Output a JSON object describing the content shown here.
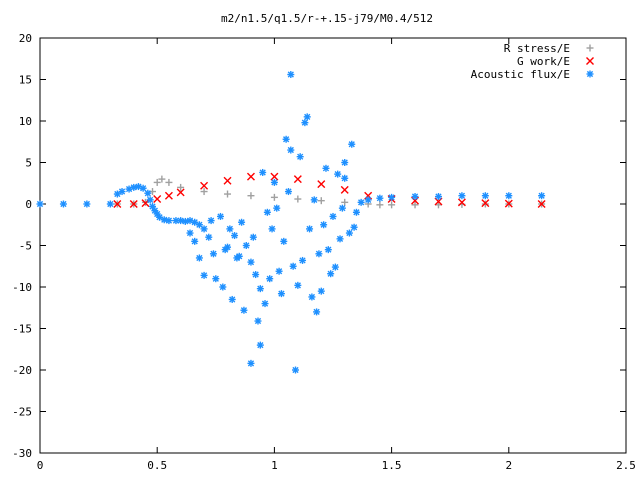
{
  "chart_data": {
    "type": "scatter",
    "title": "m2/n1.5/q1.5/r-+.15-j79/M0.4/512",
    "xlabel": "",
    "ylabel": "",
    "xlim": [
      0,
      2.5
    ],
    "ylim": [
      -30,
      20
    ],
    "x_ticks": [
      "0",
      "0.5",
      "1",
      "1.5",
      "2",
      "2.5"
    ],
    "y_ticks": [
      "20",
      "15",
      "10",
      "5",
      "0",
      "-5",
      "-10",
      "-15",
      "-20",
      "-25",
      "-30"
    ],
    "grid": false,
    "legend_position": "top-right",
    "series": [
      {
        "name": "R stress/E",
        "marker": "plus",
        "color": "#a0a0a0",
        "x": [
          0.33,
          0.4,
          0.45,
          0.48,
          0.5,
          0.52,
          0.55,
          0.6,
          0.7,
          0.8,
          0.9,
          1.0,
          1.1,
          1.2,
          1.3,
          1.4,
          1.45,
          1.5,
          1.6,
          1.7,
          1.8,
          1.9,
          2.0,
          2.14
        ],
        "y": [
          0.0,
          0.0,
          0.2,
          1.5,
          2.6,
          3.0,
          2.6,
          2.0,
          1.5,
          1.2,
          1.0,
          0.8,
          0.6,
          0.4,
          0.2,
          0.0,
          -0.1,
          -0.1,
          -0.1,
          -0.1,
          -0.05,
          0.0,
          0.0,
          0.0
        ]
      },
      {
        "name": "G work/E",
        "marker": "cross",
        "color": "#ff0000",
        "x": [
          0.33,
          0.4,
          0.45,
          0.5,
          0.55,
          0.6,
          0.7,
          0.8,
          0.9,
          1.0,
          1.1,
          1.2,
          1.3,
          1.4,
          1.5,
          1.6,
          1.7,
          1.8,
          1.9,
          2.0,
          2.14
        ],
        "y": [
          0.0,
          0.0,
          0.1,
          0.6,
          1.0,
          1.4,
          2.2,
          2.8,
          3.3,
          3.3,
          3.0,
          2.4,
          1.7,
          1.0,
          0.6,
          0.4,
          0.3,
          0.2,
          0.1,
          0.05,
          0.0
        ]
      },
      {
        "name": "Acoustic flux/E",
        "marker": "star",
        "color": "#1e90ff",
        "x": [
          0.0,
          0.1,
          0.2,
          0.3,
          0.33,
          0.35,
          0.38,
          0.4,
          0.42,
          0.44,
          0.46,
          0.47,
          0.48,
          0.49,
          0.5,
          0.51,
          0.53,
          0.55,
          0.58,
          0.6,
          0.62,
          0.64,
          0.66,
          0.68,
          0.7,
          1.37,
          1.4,
          1.45,
          1.5,
          1.6,
          1.7,
          1.8,
          1.9,
          2.0,
          2.14,
          1.07,
          1.14,
          1.13,
          1.05,
          1.07,
          1.11,
          1.33,
          1.3,
          1.22,
          1.27,
          1.3,
          0.95,
          1.0,
          0.72,
          0.8,
          0.85,
          0.9,
          0.92,
          0.94,
          0.98,
          1.02,
          1.16,
          1.18,
          1.2,
          1.24,
          1.26,
          0.75,
          0.78,
          0.82,
          0.87,
          0.93,
          0.96,
          1.03,
          1.08,
          1.1,
          1.12,
          1.19,
          1.23,
          1.28,
          1.32,
          0.7,
          0.74,
          0.84,
          0.88,
          0.91,
          0.99,
          1.04,
          1.15,
          1.21,
          1.25,
          1.35,
          0.73,
          0.77,
          0.81,
          0.86,
          0.97,
          1.01,
          1.06,
          1.17,
          1.29,
          1.34,
          0.9,
          0.94,
          1.09,
          0.66,
          0.64,
          0.68,
          0.79,
          0.83
        ],
        "y": [
          0.0,
          0.0,
          0.0,
          0.0,
          1.2,
          1.5,
          1.8,
          2.0,
          2.1,
          1.9,
          1.3,
          0.5,
          -0.3,
          -0.8,
          -1.2,
          -1.6,
          -1.9,
          -2.0,
          -2.0,
          -2.0,
          -2.1,
          -2.0,
          -2.2,
          -2.5,
          -3.0,
          0.2,
          0.5,
          0.7,
          0.8,
          0.9,
          0.9,
          1.0,
          1.0,
          1.0,
          1.0,
          15.6,
          10.5,
          9.8,
          7.8,
          6.5,
          5.7,
          7.2,
          5.0,
          4.3,
          3.6,
          3.1,
          3.8,
          2.6,
          -4.0,
          -5.2,
          -6.3,
          -7.0,
          -8.5,
          -10.2,
          -9.0,
          -8.1,
          -11.2,
          -13.0,
          -10.5,
          -8.4,
          -7.6,
          -9.0,
          -10.0,
          -11.5,
          -12.8,
          -14.1,
          -12.0,
          -10.8,
          -7.5,
          -9.8,
          -6.8,
          -6.0,
          -5.5,
          -4.2,
          -3.5,
          -8.6,
          -6.0,
          -6.5,
          -5.0,
          -4.0,
          -3.0,
          -4.5,
          -3.0,
          -2.5,
          -1.5,
          -1.0,
          -2.0,
          -1.5,
          -3.0,
          -2.2,
          -1.0,
          -0.5,
          1.5,
          0.5,
          -0.5,
          -2.8,
          -19.2,
          -17.0,
          -20.0,
          -4.5,
          -3.5,
          -6.5,
          -5.5,
          -3.8
        ]
      }
    ]
  }
}
